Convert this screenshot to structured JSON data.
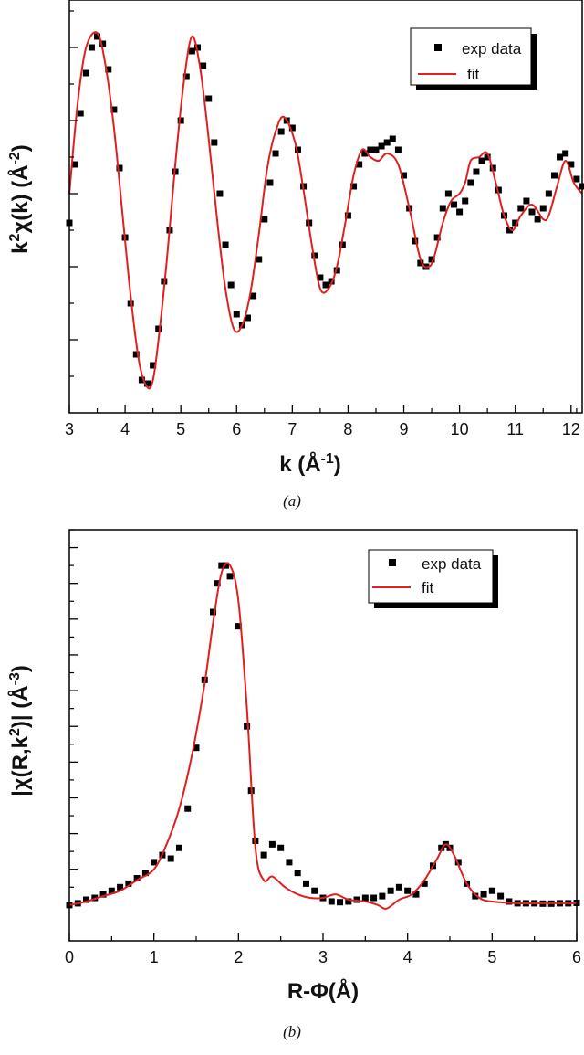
{
  "colors": {
    "data": "#000000",
    "fit": "#e02020",
    "axis": "#000000"
  },
  "chart_data": [
    {
      "type": "line",
      "panel": "a",
      "caption": "(a)",
      "xlabel_main": "k (Å",
      "xlabel_sup": "-1",
      "xlabel_end": ")",
      "ylabel_parts": [
        "k",
        "2",
        "χ(k) (Å",
        "-2",
        ")"
      ],
      "xlim": [
        3,
        12.2
      ],
      "ylim": [
        -6,
        5.3
      ],
      "xticks": [
        3,
        4,
        5,
        6,
        7,
        8,
        9,
        10,
        11,
        12
      ],
      "xtick_labels": [
        "3",
        "4",
        "5",
        "6",
        "7",
        "8",
        "9",
        "10",
        "11",
        "12"
      ],
      "yticks": [
        -4,
        -2,
        0,
        2,
        4
      ],
      "show_ytick_labels": false,
      "legend": {
        "position": "top-right",
        "data_label": "exp data",
        "fit_label": "fit"
      },
      "fit_curve": {
        "x": [
          3.0,
          3.15,
          3.3,
          3.5,
          3.65,
          3.8,
          3.95,
          4.1,
          4.25,
          4.4,
          4.5,
          4.6,
          4.75,
          4.9,
          5.05,
          5.2,
          5.35,
          5.5,
          5.65,
          5.8,
          5.95,
          6.1,
          6.25,
          6.4,
          6.55,
          6.7,
          6.85,
          7.05,
          7.2,
          7.35,
          7.5,
          7.65,
          7.8,
          7.95,
          8.1,
          8.25,
          8.4,
          8.55,
          8.7,
          8.9,
          9.1,
          9.3,
          9.45,
          9.55,
          9.7,
          9.85,
          10.0,
          10.1,
          10.2,
          10.35,
          10.5,
          10.65,
          10.8,
          10.95,
          11.1,
          11.3,
          11.5,
          11.6,
          11.75,
          11.9,
          12.05,
          12.2
        ],
        "y": [
          0.0,
          2.5,
          4.0,
          4.4,
          3.5,
          1.8,
          -0.5,
          -2.8,
          -4.6,
          -5.3,
          -5.1,
          -4.0,
          -1.8,
          0.8,
          3.0,
          4.3,
          3.4,
          1.5,
          -0.7,
          -2.6,
          -3.7,
          -3.6,
          -2.7,
          -1.1,
          0.7,
          1.7,
          2.1,
          1.4,
          0.1,
          -1.4,
          -2.6,
          -2.6,
          -2.0,
          -0.8,
          0.5,
          1.2,
          1.0,
          0.9,
          1.1,
          0.8,
          -0.4,
          -1.8,
          -2.0,
          -1.7,
          -0.8,
          -0.2,
          0.0,
          0.3,
          0.9,
          1.0,
          1.1,
          0.3,
          -0.6,
          -1.0,
          -0.6,
          -0.3,
          -0.7,
          -0.6,
          0.2,
          0.9,
          0.3,
          0.0
        ]
      },
      "exp_points": {
        "x": [
          3.0,
          3.1,
          3.2,
          3.3,
          3.4,
          3.5,
          3.6,
          3.7,
          3.8,
          3.9,
          4.0,
          4.1,
          4.2,
          4.3,
          4.4,
          4.5,
          4.6,
          4.7,
          4.8,
          4.9,
          5.0,
          5.1,
          5.2,
          5.3,
          5.4,
          5.5,
          5.6,
          5.7,
          5.8,
          5.9,
          6.0,
          6.1,
          6.2,
          6.3,
          6.4,
          6.5,
          6.6,
          6.7,
          6.8,
          6.9,
          7.0,
          7.1,
          7.2,
          7.3,
          7.4,
          7.5,
          7.6,
          7.7,
          7.8,
          7.9,
          8.0,
          8.1,
          8.2,
          8.3,
          8.4,
          8.5,
          8.6,
          8.7,
          8.8,
          8.9,
          9.0,
          9.1,
          9.2,
          9.3,
          9.4,
          9.5,
          9.6,
          9.7,
          9.8,
          9.9,
          10.0,
          10.1,
          10.2,
          10.3,
          10.4,
          10.5,
          10.6,
          10.7,
          10.8,
          10.9,
          11.0,
          11.1,
          11.2,
          11.3,
          11.4,
          11.5,
          11.6,
          11.7,
          11.8,
          11.9,
          12.0,
          12.1,
          12.2
        ],
        "y": [
          -0.8,
          0.8,
          2.2,
          3.3,
          4.0,
          4.3,
          4.1,
          3.4,
          2.3,
          0.7,
          -1.2,
          -3.0,
          -4.4,
          -5.1,
          -5.2,
          -4.7,
          -3.7,
          -2.4,
          -1.0,
          0.6,
          2.0,
          3.2,
          3.9,
          4.0,
          3.5,
          2.6,
          1.4,
          0.0,
          -1.4,
          -2.5,
          -3.3,
          -3.6,
          -3.4,
          -2.8,
          -1.8,
          -0.7,
          0.3,
          1.1,
          1.7,
          2.0,
          1.8,
          1.2,
          0.2,
          -0.8,
          -1.7,
          -2.3,
          -2.5,
          -2.4,
          -2.1,
          -1.4,
          -0.6,
          0.2,
          0.8,
          1.1,
          1.2,
          1.2,
          1.3,
          1.4,
          1.5,
          1.2,
          0.5,
          -0.4,
          -1.3,
          -1.9,
          -2.0,
          -1.8,
          -1.2,
          -0.4,
          0.0,
          -0.3,
          -0.5,
          -0.2,
          0.3,
          0.6,
          0.9,
          1.0,
          0.7,
          0.1,
          -0.6,
          -1.0,
          -0.8,
          -0.4,
          -0.2,
          -0.5,
          -0.7,
          -0.4,
          0.0,
          0.5,
          1.0,
          1.1,
          0.8,
          0.4,
          0.2
        ]
      }
    },
    {
      "type": "line",
      "panel": "b",
      "caption": "(b)",
      "xlabel_main": "R-Φ(Å)",
      "ylabel_parts": [
        "|χ(R,k",
        "2",
        ")| (Å",
        "-3",
        ")"
      ],
      "xlim": [
        0,
        6
      ],
      "ylim": [
        -0.1,
        1.05
      ],
      "xticks": [
        0,
        1,
        2,
        3,
        4,
        5,
        6
      ],
      "xtick_labels": [
        "0",
        "1",
        "2",
        "3",
        "4",
        "5",
        "6"
      ],
      "yticks": [
        0.1,
        0.2,
        0.3,
        0.4,
        0.5,
        0.6,
        0.7,
        0.8,
        0.9,
        1.0
      ],
      "show_ytick_labels": false,
      "legend": {
        "position": "top-right",
        "data_label": "exp data",
        "fit_label": "fit"
      },
      "fit_curve": {
        "x": [
          0.0,
          0.2,
          0.4,
          0.6,
          0.8,
          1.0,
          1.15,
          1.3,
          1.45,
          1.6,
          1.7,
          1.8,
          1.9,
          2.0,
          2.1,
          2.2,
          2.3,
          2.4,
          2.55,
          2.7,
          2.85,
          3.0,
          3.15,
          3.3,
          3.5,
          3.65,
          3.75,
          3.9,
          4.05,
          4.2,
          4.35,
          4.45,
          4.55,
          4.7,
          4.85,
          5.0,
          5.3,
          5.6,
          6.0
        ],
        "y": [
          0.0,
          0.01,
          0.025,
          0.04,
          0.07,
          0.1,
          0.17,
          0.27,
          0.42,
          0.62,
          0.79,
          0.93,
          0.95,
          0.85,
          0.55,
          0.16,
          0.07,
          0.08,
          0.05,
          0.03,
          0.02,
          0.02,
          0.03,
          0.015,
          0.01,
          0.0,
          -0.01,
          0.015,
          0.03,
          0.07,
          0.13,
          0.17,
          0.14,
          0.06,
          0.02,
          0.01,
          0.005,
          0.005,
          0.005
        ]
      },
      "exp_points": {
        "x": [
          0.0,
          0.1,
          0.2,
          0.3,
          0.4,
          0.5,
          0.6,
          0.7,
          0.8,
          0.9,
          1.0,
          1.1,
          1.2,
          1.3,
          1.4,
          1.5,
          1.6,
          1.7,
          1.75,
          1.8,
          1.85,
          1.9,
          2.0,
          2.1,
          2.15,
          2.2,
          2.3,
          2.4,
          2.5,
          2.6,
          2.7,
          2.8,
          2.9,
          3.0,
          3.1,
          3.2,
          3.3,
          3.4,
          3.5,
          3.6,
          3.7,
          3.8,
          3.9,
          4.0,
          4.1,
          4.2,
          4.3,
          4.4,
          4.45,
          4.5,
          4.6,
          4.7,
          4.8,
          4.9,
          5.0,
          5.1,
          5.2,
          5.3,
          5.4,
          5.5,
          5.6,
          5.7,
          5.8,
          5.9,
          6.0
        ],
        "y": [
          0.0,
          0.005,
          0.015,
          0.02,
          0.03,
          0.04,
          0.05,
          0.06,
          0.075,
          0.09,
          0.12,
          0.14,
          0.13,
          0.16,
          0.27,
          0.44,
          0.63,
          0.82,
          0.9,
          0.95,
          0.95,
          0.92,
          0.78,
          0.5,
          0.32,
          0.18,
          0.14,
          0.17,
          0.16,
          0.12,
          0.09,
          0.06,
          0.04,
          0.02,
          0.01,
          0.008,
          0.01,
          0.015,
          0.02,
          0.02,
          0.025,
          0.04,
          0.05,
          0.04,
          0.03,
          0.06,
          0.11,
          0.16,
          0.17,
          0.16,
          0.12,
          0.06,
          0.025,
          0.03,
          0.04,
          0.025,
          0.01,
          0.005,
          0.005,
          0.005,
          0.004,
          0.004,
          0.005,
          0.005,
          0.006
        ]
      }
    }
  ]
}
